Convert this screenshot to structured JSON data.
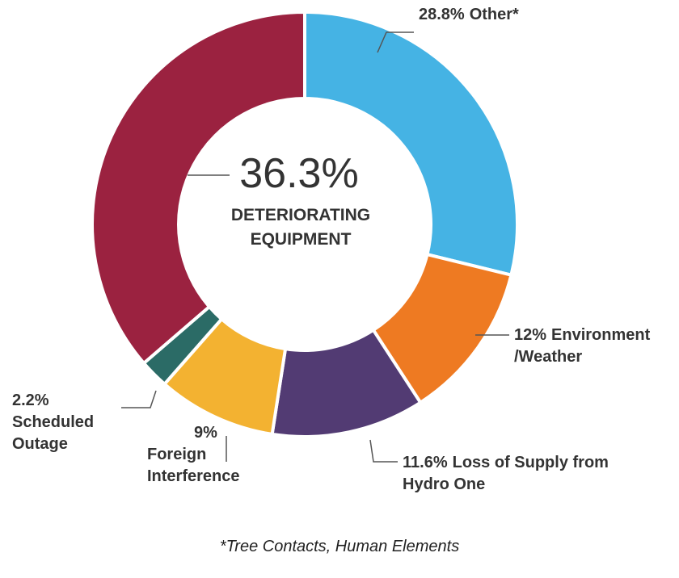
{
  "chart_data": {
    "type": "donut",
    "categories": [
      "Other*",
      "Environment /Weather",
      "Loss of Supply from Hydro One",
      "Foreign Interference",
      "Scheduled Outage",
      "DETERIORATING EQUIPMENT"
    ],
    "values": [
      28.8,
      12,
      11.6,
      9,
      2.2,
      36.3
    ],
    "value_labels": [
      "28.8%",
      "12%",
      "11.6%",
      "9%",
      "2.2%",
      "36.3%"
    ],
    "colors": [
      "#45b3e4",
      "#ee7a22",
      "#523b73",
      "#f3b231",
      "#2b6b66",
      "#9b2240"
    ],
    "footnote": "*Tree Contacts, Human Elements"
  }
}
